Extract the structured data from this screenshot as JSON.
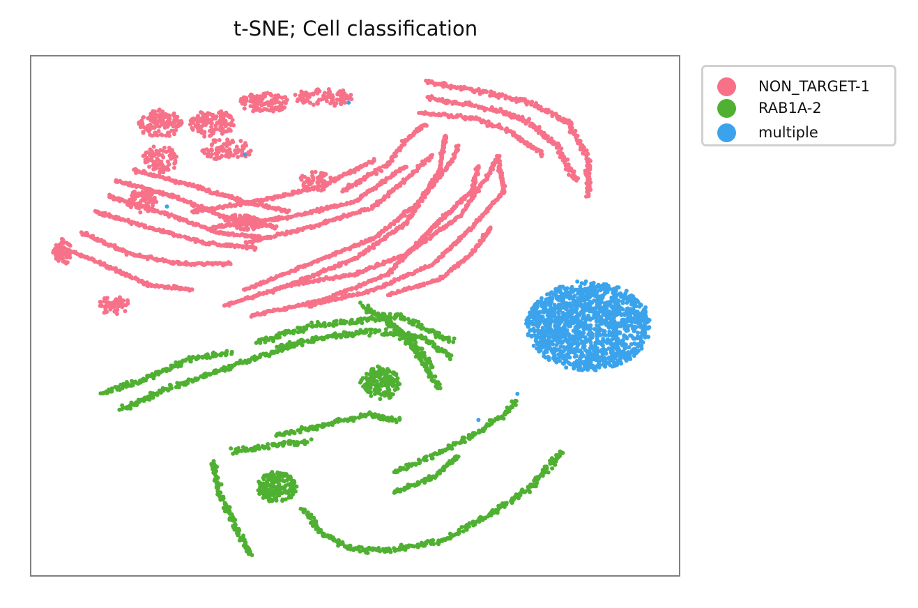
{
  "chart_data": {
    "type": "scatter",
    "title": "t-SNE; Cell classification",
    "xlabel": "",
    "ylabel": "",
    "xlim": [
      0,
      100
    ],
    "ylim": [
      0,
      100
    ],
    "ticks_shown": false,
    "grid": false,
    "legend_position": "outside top-right",
    "series": [
      {
        "name": "NON_TARGET-1",
        "color": "#f77189",
        "clusters": [
          {
            "kind": "band",
            "points": [
              [
                5,
                63
              ],
              [
                11,
                60
              ],
              [
                18,
                56
              ],
              [
                25,
                55
              ]
            ],
            "spread": 0.8
          },
          {
            "kind": "band",
            "points": [
              [
                8,
                66
              ],
              [
                15,
                62
              ],
              [
                23,
                60
              ],
              [
                31,
                60
              ]
            ],
            "spread": 0.8
          },
          {
            "kind": "band",
            "points": [
              [
                10,
                70
              ],
              [
                18,
                67
              ],
              [
                27,
                64
              ],
              [
                35,
                63
              ]
            ],
            "spread": 0.8
          },
          {
            "kind": "band",
            "points": [
              [
                12,
                73
              ],
              [
                20,
                70
              ],
              [
                29,
                66
              ],
              [
                36,
                65
              ]
            ],
            "spread": 0.8
          },
          {
            "kind": "band",
            "points": [
              [
                13,
                76
              ],
              [
                22,
                73
              ],
              [
                30,
                69
              ],
              [
                38,
                67
              ]
            ],
            "spread": 0.8
          },
          {
            "kind": "band",
            "points": [
              [
                16,
                78
              ],
              [
                25,
                75
              ],
              [
                33,
                72
              ],
              [
                40,
                70
              ]
            ],
            "spread": 0.8
          },
          {
            "kind": "band",
            "points": [
              [
                25,
                70
              ],
              [
                35,
                72
              ],
              [
                45,
                75
              ],
              [
                53,
                80
              ]
            ],
            "spread": 0.8
          },
          {
            "kind": "band",
            "points": [
              [
                28,
                67
              ],
              [
                40,
                69
              ],
              [
                50,
                72
              ],
              [
                58,
                79
              ]
            ],
            "spread": 0.8
          },
          {
            "kind": "band",
            "points": [
              [
                33,
                64
              ],
              [
                43,
                67
              ],
              [
                53,
                71
              ],
              [
                62,
                81
              ]
            ],
            "spread": 0.8
          },
          {
            "kind": "band",
            "points": [
              [
                30,
                52
              ],
              [
                40,
                56
              ],
              [
                50,
                61
              ],
              [
                58,
                68
              ],
              [
                63,
                78
              ],
              [
                64,
                85
              ]
            ],
            "spread": 0.7
          },
          {
            "kind": "band",
            "points": [
              [
                33,
                55
              ],
              [
                43,
                60
              ],
              [
                53,
                65
              ],
              [
                60,
                72
              ],
              [
                65,
                80
              ],
              [
                66,
                83
              ]
            ],
            "spread": 0.7
          },
          {
            "kind": "band",
            "points": [
              [
                34,
                50
              ],
              [
                45,
                53
              ],
              [
                55,
                58
              ],
              [
                62,
                67
              ],
              [
                68,
                74
              ],
              [
                69,
                79
              ]
            ],
            "spread": 0.7
          },
          {
            "kind": "band",
            "points": [
              [
                40,
                56
              ],
              [
                50,
                58
              ],
              [
                58,
                62
              ],
              [
                66,
                69
              ],
              [
                71,
                78
              ],
              [
                72,
                81
              ]
            ],
            "spread": 0.7
          },
          {
            "kind": "band",
            "points": [
              [
                43,
                52
              ],
              [
                53,
                55
              ],
              [
                62,
                60
              ],
              [
                68,
                67
              ],
              [
                73,
                74
              ],
              [
                72,
                80
              ]
            ],
            "spread": 0.7
          },
          {
            "kind": "band",
            "points": [
              [
                55,
                54
              ],
              [
                63,
                57
              ],
              [
                68,
                62
              ],
              [
                71,
                67
              ]
            ],
            "spread": 0.7
          },
          {
            "kind": "band",
            "points": [
              [
                48,
                74
              ],
              [
                55,
                79
              ],
              [
                58,
                84
              ],
              [
                61,
                87
              ]
            ],
            "spread": 1.0
          },
          {
            "kind": "band",
            "points": [
              [
                61,
                95
              ],
              [
                70,
                93
              ],
              [
                77,
                91
              ],
              [
                83,
                87
              ],
              [
                86,
                80
              ],
              [
                86,
                73
              ]
            ],
            "spread": 1.3
          },
          {
            "kind": "band",
            "points": [
              [
                61,
                92
              ],
              [
                70,
                90
              ],
              [
                76,
                88
              ],
              [
                81,
                83
              ],
              [
                84,
                76
              ]
            ],
            "spread": 1.3
          },
          {
            "kind": "band",
            "points": [
              [
                60,
                89
              ],
              [
                68,
                88
              ],
              [
                73,
                86
              ],
              [
                79,
                81
              ]
            ],
            "spread": 1.1
          },
          {
            "kind": "blob",
            "cx": 20,
            "cy": 87,
            "rx": 3.5,
            "ry": 2.5,
            "n": 130
          },
          {
            "kind": "blob",
            "cx": 28,
            "cy": 87,
            "rx": 3.5,
            "ry": 2.5,
            "n": 130
          },
          {
            "kind": "blob",
            "cx": 36,
            "cy": 91,
            "rx": 4.0,
            "ry": 1.8,
            "n": 110
          },
          {
            "kind": "blob",
            "cx": 45,
            "cy": 92,
            "rx": 4.5,
            "ry": 1.5,
            "n": 100
          },
          {
            "kind": "blob",
            "cx": 30,
            "cy": 82,
            "rx": 4.0,
            "ry": 2.0,
            "n": 90
          },
          {
            "kind": "blob",
            "cx": 20,
            "cy": 80,
            "rx": 2.5,
            "ry": 2.5,
            "n": 80
          },
          {
            "kind": "blob",
            "cx": 17,
            "cy": 72,
            "rx": 2.5,
            "ry": 2.0,
            "n": 70
          },
          {
            "kind": "blob",
            "cx": 5,
            "cy": 62,
            "rx": 1.3,
            "ry": 2.5,
            "n": 60
          },
          {
            "kind": "blob",
            "cx": 13,
            "cy": 52,
            "rx": 2.5,
            "ry": 1.5,
            "n": 60
          },
          {
            "kind": "blob",
            "cx": 33,
            "cy": 68,
            "rx": 3.0,
            "ry": 1.5,
            "n": 80
          },
          {
            "kind": "blob",
            "cx": 44,
            "cy": 76,
            "rx": 2.5,
            "ry": 2.0,
            "n": 60
          }
        ]
      },
      {
        "name": "RAB1A-2",
        "color": "#4fb031",
        "clusters": [
          {
            "kind": "band",
            "points": [
              [
                11,
                35
              ],
              [
                18,
                38
              ],
              [
                25,
                42
              ],
              [
                31,
                43
              ]
            ],
            "spread": 1.3
          },
          {
            "kind": "band",
            "points": [
              [
                14,
                32
              ],
              [
                21,
                36
              ],
              [
                28,
                39
              ],
              [
                35,
                42
              ],
              [
                42,
                45
              ]
            ],
            "spread": 1.3
          },
          {
            "kind": "band",
            "points": [
              [
                35,
                45
              ],
              [
                43,
                48
              ],
              [
                50,
                49
              ],
              [
                57,
                50
              ],
              [
                65,
                45
              ]
            ],
            "spread": 1.5
          },
          {
            "kind": "band",
            "points": [
              [
                38,
                44
              ],
              [
                46,
                46
              ],
              [
                53,
                47
              ],
              [
                60,
                46
              ],
              [
                65,
                42
              ]
            ],
            "spread": 1.5
          },
          {
            "kind": "band",
            "points": [
              [
                51,
                52
              ],
              [
                56,
                48
              ],
              [
                60,
                42
              ],
              [
                63,
                36
              ]
            ],
            "spread": 1.3
          },
          {
            "kind": "band",
            "points": [
              [
                54,
                50
              ],
              [
                59,
                45
              ],
              [
                62,
                40
              ]
            ],
            "spread": 1.2
          },
          {
            "kind": "blob",
            "cx": 54,
            "cy": 37,
            "rx": 3.0,
            "ry": 3.0,
            "n": 160
          },
          {
            "kind": "band",
            "points": [
              [
                38,
                27
              ],
              [
                45,
                29
              ],
              [
                52,
                31
              ],
              [
                57,
                30
              ]
            ],
            "spread": 1.4
          },
          {
            "kind": "band",
            "points": [
              [
                31,
                24
              ],
              [
                37,
                25
              ],
              [
                43,
                26
              ]
            ],
            "spread": 1.4
          },
          {
            "kind": "band",
            "points": [
              [
                28,
                22
              ],
              [
                29,
                16
              ],
              [
                31,
                11
              ],
              [
                33,
                6
              ],
              [
                34,
                4
              ]
            ],
            "spread": 1.4
          },
          {
            "kind": "blob",
            "cx": 38,
            "cy": 17,
            "rx": 3.0,
            "ry": 3.0,
            "n": 180
          },
          {
            "kind": "band",
            "points": [
              [
                56,
                20
              ],
              [
                62,
                23
              ],
              [
                68,
                27
              ],
              [
                73,
                31
              ],
              [
                75,
                34
              ]
            ],
            "spread": 1.3
          },
          {
            "kind": "band",
            "points": [
              [
                56,
                16
              ],
              [
                62,
                19
              ],
              [
                66,
                23
              ]
            ],
            "spread": 1.0
          },
          {
            "kind": "band",
            "points": [
              [
                42,
                13
              ],
              [
                45,
                8
              ],
              [
                50,
                5
              ],
              [
                56,
                5
              ],
              [
                64,
                7
              ],
              [
                71,
                12
              ],
              [
                77,
                17
              ],
              [
                82,
                24
              ]
            ],
            "spread": 1.4
          }
        ]
      },
      {
        "name": "multiple",
        "color": "#3ba3ec",
        "clusters": [
          {
            "kind": "blob",
            "cx": 86,
            "cy": 48,
            "rx": 9.5,
            "ry": 8.5,
            "n": 1400
          },
          {
            "kind": "single",
            "x": 49,
            "y": 91
          },
          {
            "kind": "single",
            "x": 33,
            "y": 81
          },
          {
            "kind": "single",
            "x": 21,
            "y": 71
          },
          {
            "kind": "single",
            "x": 75,
            "y": 35
          },
          {
            "kind": "single",
            "x": 69,
            "y": 30
          }
        ]
      }
    ]
  }
}
